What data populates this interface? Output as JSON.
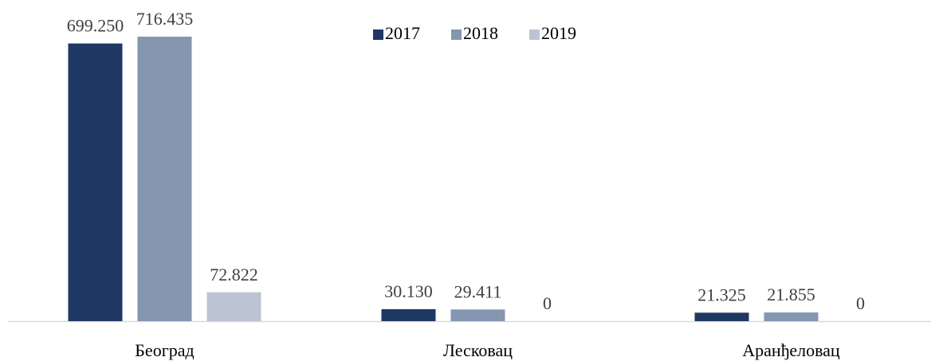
{
  "chart_data": {
    "type": "bar",
    "categories": [
      "Београд",
      "Лесковац",
      "Аранђеловац"
    ],
    "series": [
      {
        "name": "2017",
        "color": "#1f3864",
        "values": [
          699250,
          30130,
          21325
        ],
        "value_labels": [
          "699.250",
          "30.130",
          "21.325"
        ]
      },
      {
        "name": "2018",
        "color": "#8496b0",
        "values": [
          716435,
          29411,
          21855
        ],
        "value_labels": [
          "716.435",
          "29.411",
          "21.855"
        ]
      },
      {
        "name": "2019",
        "color": "#bcc3d3",
        "values": [
          72822,
          0,
          0
        ],
        "value_labels": [
          "72.822",
          "0",
          "0"
        ]
      }
    ],
    "legend": "top"
  }
}
